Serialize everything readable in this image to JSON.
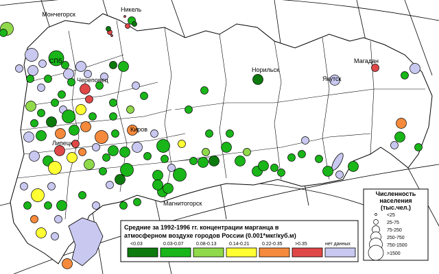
{
  "map": {
    "title_line1": "Средние за 1992-1996 гг. концентрации марганца в",
    "title_line2": "атмосферном воздухе городов России (0.001*мкг/куб.м)",
    "classes": [
      {
        "label": "<0.03",
        "color": "#0d7a0d"
      },
      {
        "label": "0.03-0.07",
        "color": "#19b519"
      },
      {
        "label": "0.08-0.13",
        "color": "#8fd94a"
      },
      {
        "label": "0.14-0.21",
        "color": "#ffff33"
      },
      {
        "label": "0.22-0.35",
        "color": "#f58a3c"
      },
      {
        "label": ">0.35",
        "color": "#e04848"
      },
      {
        "label": "нет данных",
        "color": "#c8c8f0"
      }
    ],
    "population_legend": {
      "title_line1": "Численность",
      "title_line2": "населения",
      "title_line3": "(тыс.чел.)",
      "sizes": [
        "<25",
        "25-75",
        "75-250",
        "250-750",
        "750-1500",
        ">1500"
      ]
    },
    "cities": [
      {
        "name": "Мончегорск",
        "cls": 5,
        "size": 1
      },
      {
        "name": "Никель",
        "cls": 5,
        "size": 1
      },
      {
        "name": "СПб",
        "cls": 1,
        "size": 5
      },
      {
        "name": "Череповец",
        "cls": 5,
        "size": 3
      },
      {
        "name": "Норильск",
        "cls": 0,
        "size": 3
      },
      {
        "name": "Якутск",
        "cls": 6,
        "size": 3
      },
      {
        "name": "Магадан",
        "cls": 5,
        "size": 2
      },
      {
        "name": "Киров",
        "cls": 4,
        "size": 3
      },
      {
        "name": "Липецк",
        "cls": 5,
        "size": 3
      },
      {
        "name": "Магнитогорск",
        "cls": 1,
        "size": 3
      }
    ]
  }
}
